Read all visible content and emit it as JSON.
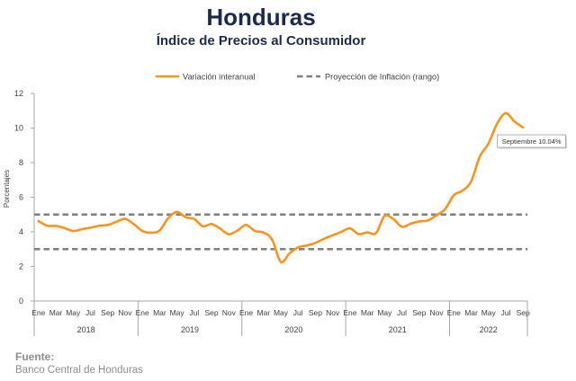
{
  "chart_data": {
    "type": "line",
    "title": "Honduras",
    "subtitle": "Índice de Precios al Consumidor",
    "ylabel": "Porcentajes",
    "ylim": [
      0,
      12
    ],
    "yticks": [
      0,
      2,
      4,
      6,
      8,
      10,
      12
    ],
    "grid": false,
    "legend_position": "top",
    "x_axis": {
      "years": [
        "2018",
        "2019",
        "2020",
        "2021",
        "2022"
      ],
      "month_tick_labels": [
        "Ene",
        "Mar",
        "May",
        "Jul",
        "Sep",
        "Nov"
      ]
    },
    "series": [
      {
        "name": "Variación interanual",
        "color": "#f5951f",
        "line_style": "solid",
        "values_by_year": {
          "2018": [
            4.62,
            4.36,
            4.34,
            4.22,
            4.05,
            4.15,
            4.24,
            4.35,
            4.4,
            4.58,
            4.75,
            4.45
          ],
          "2019": [
            4.05,
            3.95,
            4.08,
            4.8,
            5.15,
            4.85,
            4.74,
            4.32,
            4.45,
            4.18,
            3.86,
            4.08
          ],
          "2020": [
            4.4,
            4.05,
            3.96,
            3.55,
            2.26,
            2.75,
            3.1,
            3.21,
            3.36,
            3.6,
            3.8,
            4.0
          ],
          "2021": [
            4.2,
            3.87,
            3.97,
            3.92,
            4.92,
            4.74,
            4.29,
            4.47,
            4.6,
            4.66,
            4.96,
            5.32
          ],
          "2022": [
            6.12,
            6.38,
            6.92,
            8.35,
            9.1,
            10.25,
            10.86,
            10.38,
            10.04
          ]
        }
      },
      {
        "name": "Proyección de Inflación (rango)",
        "color": "#7f7f7f",
        "line_style": "dashed",
        "range": [
          3,
          5
        ]
      }
    ],
    "annotation": {
      "text": "Septiembre 10.04%"
    }
  },
  "footer": {
    "source_label": "Fuente:",
    "source_text": "Banco Central de Honduras"
  }
}
